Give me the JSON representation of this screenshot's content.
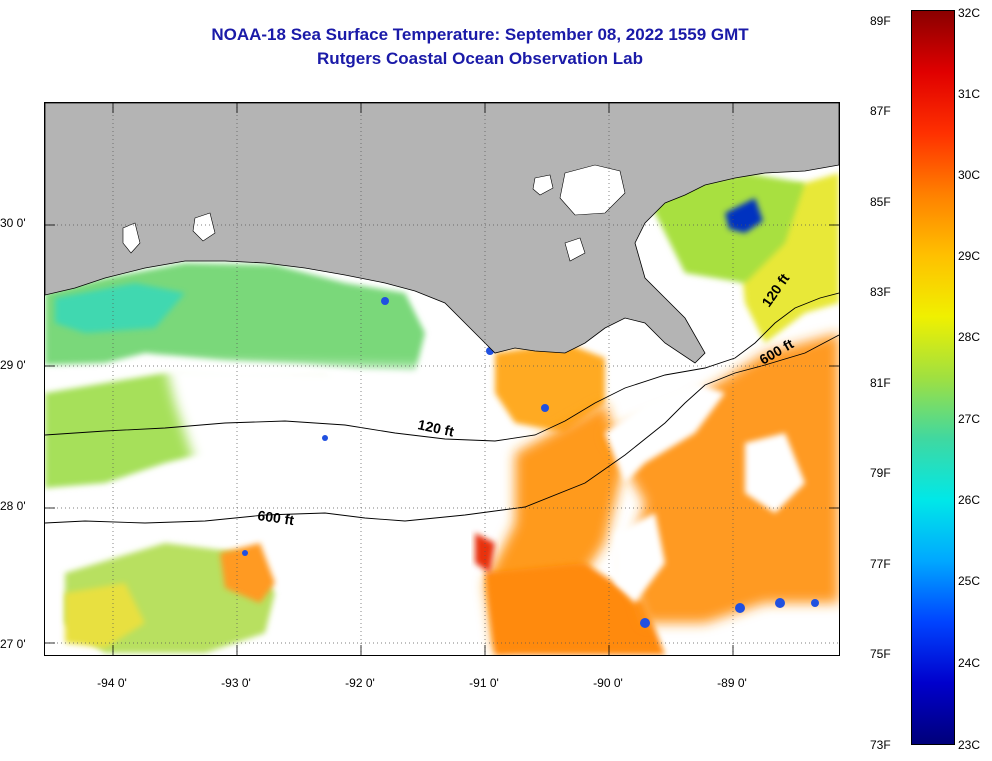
{
  "title_line1": "NOAA-18 Sea Surface Temperature:  September 08, 2022 1559 GMT",
  "title_line2": "Rutgers Coastal Ocean Observation Lab",
  "lat_labels": [
    "30 0'",
    "29 0'",
    "28 0'",
    "27 0'"
  ],
  "lon_labels": [
    "-94 0'",
    "-93 0'",
    "-92 0'",
    "-91 0'",
    "-90 0'",
    "-89 0'"
  ],
  "contour_labels": [
    "120 ft",
    "600 ft",
    "120 ft",
    "600 ft"
  ],
  "colorbar_f_labels": [
    "89F",
    "87F",
    "85F",
    "83F",
    "81F",
    "79F",
    "77F",
    "75F",
    "73F"
  ],
  "colorbar_c_labels": [
    "32C",
    "31C",
    "30C",
    "29C",
    "28C",
    "27C",
    "26C",
    "25C",
    "24C",
    "23C"
  ],
  "colors": {
    "title": "#1a1aa8",
    "land": "#b4b4b4",
    "no_data": "#ffffff",
    "gradient": [
      "#00007a",
      "#0000cc",
      "#0044ff",
      "#00a8ff",
      "#00e8e8",
      "#40d8a0",
      "#a0e040",
      "#f0f000",
      "#ffc000",
      "#ff8000",
      "#ff3000",
      "#e00000",
      "#8a0000"
    ]
  }
}
